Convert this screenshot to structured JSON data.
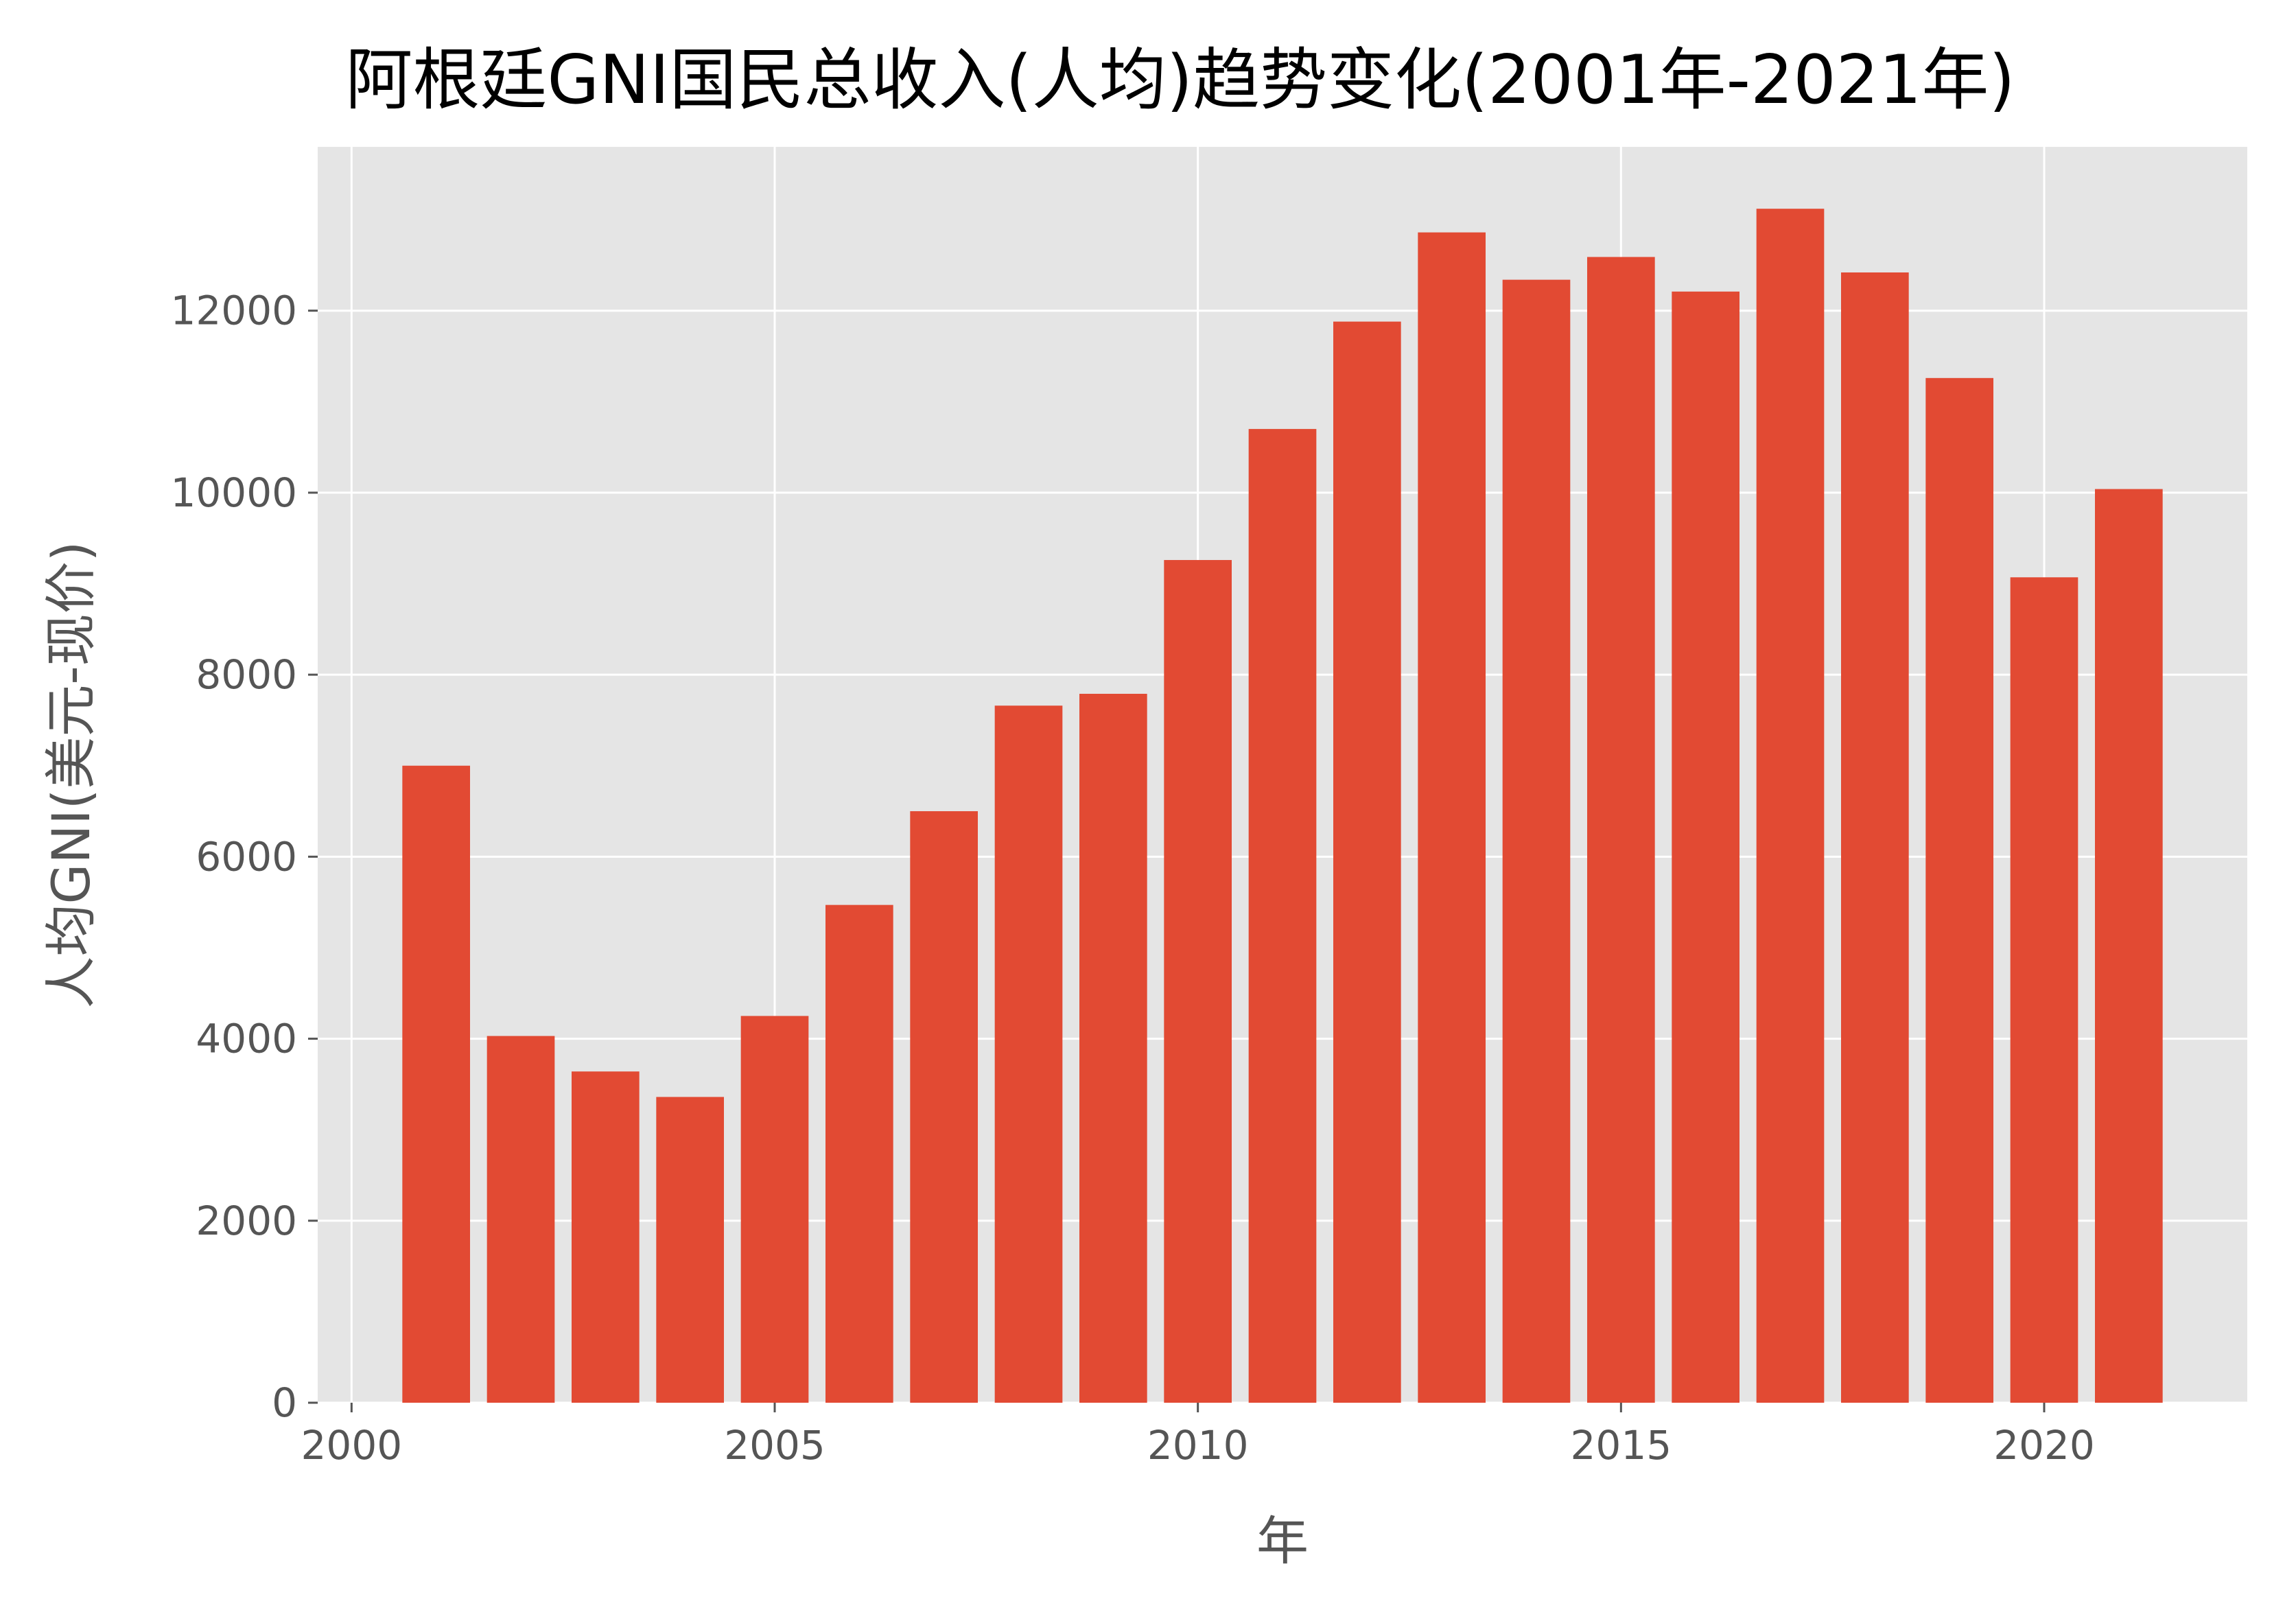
{
  "chart_data": {
    "type": "bar",
    "title": "阿根廷GNI国民总收入(人均)趋势变化(2001年-2021年)",
    "xlabel": "年",
    "ylabel": "人均GNI(美元-现价)",
    "x": [
      2001,
      2002,
      2003,
      2004,
      2005,
      2006,
      2007,
      2008,
      2009,
      2010,
      2011,
      2012,
      2013,
      2014,
      2015,
      2016,
      2017,
      2018,
      2019,
      2020,
      2021
    ],
    "values": [
      7000,
      4030,
      3640,
      3360,
      4250,
      5470,
      6500,
      7660,
      7790,
      9260,
      10700,
      11880,
      12860,
      12340,
      12590,
      12210,
      13120,
      12420,
      11260,
      9070,
      10040
    ],
    "xlim": [
      1999.6,
      2022.4
    ],
    "ylim": [
      0,
      13800
    ],
    "xticks": [
      2000,
      2005,
      2010,
      2015,
      2020
    ],
    "yticks": [
      0,
      2000,
      4000,
      6000,
      8000,
      10000,
      12000
    ],
    "grid": true,
    "colors": {
      "bar": "#e24a33",
      "plot_bg": "#e5e5e5",
      "grid": "#ffffff"
    }
  }
}
